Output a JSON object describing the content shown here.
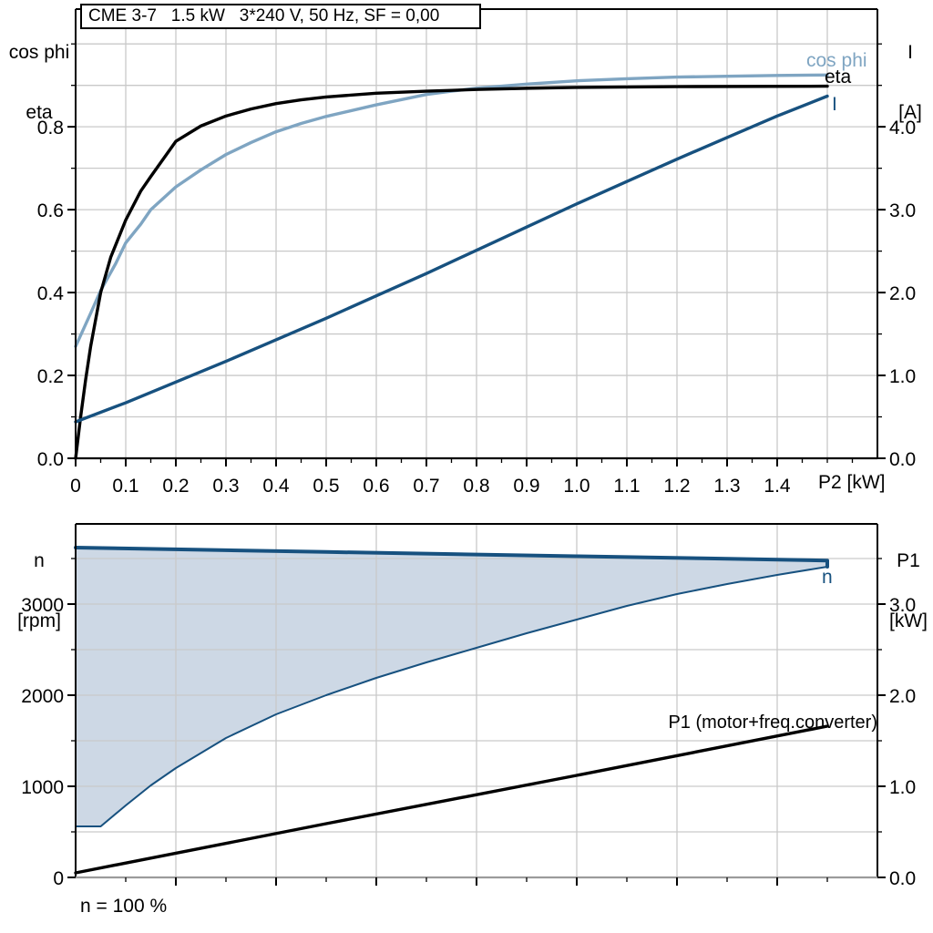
{
  "colors": {
    "cos_phi": "#7fa5c2",
    "eta": "#000000",
    "current": "#17517f",
    "speed_line": "#17517f",
    "band_fill": "#cdd8e5",
    "gridline": "#c9c9c9",
    "axis": "#000000",
    "bottom_axis_gray": "#9b9b9b"
  },
  "chart_data": [
    {
      "type": "line",
      "title": "CME 3-7   1.5 kW   3*240 V, 50 Hz, SF = 0,00",
      "x_axis": {
        "label": "P2 [kW]",
        "range": [
          0,
          1.6
        ],
        "major_ticks": [
          0,
          0.1,
          0.2,
          0.3,
          0.4,
          0.5,
          0.6,
          0.7,
          0.8,
          0.9,
          1.0,
          1.1,
          1.2,
          1.3,
          1.4
        ],
        "tick_labels": [
          "0",
          "0.1",
          "0.2",
          "0.3",
          "0.4",
          "0.5",
          "0.6",
          "0.7",
          "0.8",
          "0.9",
          "1.0",
          "1.1",
          "1.2",
          "1.3",
          "1.4"
        ],
        "minor_step": 0.05,
        "grid_step": 0.1
      },
      "y_left": {
        "title_lines": [
          "cos phi",
          "eta"
        ],
        "range": [
          0,
          1.084
        ],
        "major_ticks": [
          0,
          0.2,
          0.4,
          0.6,
          0.8
        ],
        "tick_labels": [
          "0.0",
          "0.2",
          "0.4",
          "0.6",
          "0.8"
        ],
        "minor_step": 0.1,
        "grid_step": 0.1
      },
      "y_right": {
        "title_lines": [
          "I",
          "[A]"
        ],
        "range": [
          0,
          5.42
        ],
        "major_ticks": [
          0,
          1,
          2,
          3,
          4
        ],
        "tick_labels": [
          "0.0",
          "1.0",
          "2.0",
          "3.0",
          "4.0"
        ],
        "minor_step": 0.5
      },
      "series": [
        {
          "name": "cos phi",
          "axis": "left",
          "color": "#7fa5c2",
          "width": 3.4,
          "points": [
            [
              0,
              0.27
            ],
            [
              0.03,
              0.35
            ],
            [
              0.05,
              0.405
            ],
            [
              0.08,
              0.47
            ],
            [
              0.1,
              0.52
            ],
            [
              0.13,
              0.565
            ],
            [
              0.15,
              0.6
            ],
            [
              0.2,
              0.655
            ],
            [
              0.25,
              0.696
            ],
            [
              0.3,
              0.733
            ],
            [
              0.35,
              0.762
            ],
            [
              0.4,
              0.788
            ],
            [
              0.45,
              0.808
            ],
            [
              0.5,
              0.825
            ],
            [
              0.6,
              0.853
            ],
            [
              0.7,
              0.878
            ],
            [
              0.75,
              0.886
            ],
            [
              0.8,
              0.893
            ],
            [
              0.9,
              0.903
            ],
            [
              1.0,
              0.911
            ],
            [
              1.1,
              0.916
            ],
            [
              1.2,
              0.92
            ],
            [
              1.3,
              0.922
            ],
            [
              1.4,
              0.924
            ],
            [
              1.5,
              0.925
            ]
          ]
        },
        {
          "name": "eta",
          "axis": "left",
          "color": "#000000",
          "width": 3.4,
          "points": [
            [
              0,
              0
            ],
            [
              0.01,
              0.1
            ],
            [
              0.02,
              0.19
            ],
            [
              0.03,
              0.27
            ],
            [
              0.05,
              0.4
            ],
            [
              0.07,
              0.485
            ],
            [
              0.1,
              0.575
            ],
            [
              0.13,
              0.645
            ],
            [
              0.15,
              0.68
            ],
            [
              0.2,
              0.765
            ],
            [
              0.25,
              0.802
            ],
            [
              0.3,
              0.826
            ],
            [
              0.35,
              0.843
            ],
            [
              0.4,
              0.856
            ],
            [
              0.45,
              0.865
            ],
            [
              0.5,
              0.872
            ],
            [
              0.6,
              0.881
            ],
            [
              0.7,
              0.886
            ],
            [
              0.75,
              0.888
            ],
            [
              0.8,
              0.89
            ],
            [
              0.9,
              0.893
            ],
            [
              1.0,
              0.895
            ],
            [
              1.2,
              0.897
            ],
            [
              1.5,
              0.898
            ]
          ]
        },
        {
          "name": "I",
          "axis": "right",
          "color": "#17517f",
          "width": 3.4,
          "points": [
            [
              0,
              0.44
            ],
            [
              0.1,
              0.67
            ],
            [
              0.2,
              0.92
            ],
            [
              0.3,
              1.17
            ],
            [
              0.4,
              1.43
            ],
            [
              0.5,
              1.69
            ],
            [
              0.6,
              1.96
            ],
            [
              0.7,
              2.23
            ],
            [
              0.8,
              2.51
            ],
            [
              0.9,
              2.79
            ],
            [
              1.0,
              3.07
            ],
            [
              1.1,
              3.34
            ],
            [
              1.2,
              3.61
            ],
            [
              1.3,
              3.87
            ],
            [
              1.4,
              4.13
            ],
            [
              1.5,
              4.37
            ]
          ]
        }
      ],
      "curve_labels": [
        {
          "text": "cos phi"
        },
        {
          "text": "eta"
        },
        {
          "text": "I"
        }
      ]
    },
    {
      "type": "area-line",
      "x_axis": {
        "label": "",
        "range": [
          0,
          1.6
        ],
        "major_ticks": [
          0.2,
          0.4,
          0.6,
          0.8,
          1.0,
          1.2,
          1.4
        ],
        "tick_labels": [],
        "minor_step": 0.1,
        "grid_step": 0.2
      },
      "y_left": {
        "title_lines": [
          "n",
          "[rpm]"
        ],
        "range": [
          0,
          3880
        ],
        "major_ticks": [
          0,
          1000,
          2000,
          3000
        ],
        "tick_labels": [
          "0",
          "1000",
          "2000",
          "3000"
        ],
        "minor_step": 500,
        "grid_step": 500
      },
      "y_right": {
        "title_lines": [
          "P1",
          "[kW]"
        ],
        "range": [
          0,
          3.88
        ],
        "major_ticks": [
          0,
          1,
          2,
          3
        ],
        "tick_labels": [
          "0.0",
          "1.0",
          "2.0",
          "3.0"
        ],
        "minor_step": 0.5
      },
      "series": [
        {
          "name": "n",
          "type": "band",
          "axis": "left",
          "line_color": "#17517f",
          "fill_color": "#cdd8e5",
          "upper_width": 4,
          "lower_width": 2,
          "upper": [
            [
              0,
              3620
            ],
            [
              0.25,
              3596
            ],
            [
              0.5,
              3572
            ],
            [
              0.75,
              3549
            ],
            [
              1.0,
              3525
            ],
            [
              1.25,
              3502
            ],
            [
              1.5,
              3478
            ]
          ],
          "lower": [
            [
              0,
              560
            ],
            [
              0.05,
              560
            ],
            [
              0.1,
              790
            ],
            [
              0.15,
              1010
            ],
            [
              0.2,
              1200
            ],
            [
              0.3,
              1530
            ],
            [
              0.4,
              1790
            ],
            [
              0.5,
              2000
            ],
            [
              0.6,
              2190
            ],
            [
              0.7,
              2360
            ],
            [
              0.8,
              2520
            ],
            [
              0.9,
              2680
            ],
            [
              1.0,
              2830
            ],
            [
              1.1,
              2980
            ],
            [
              1.2,
              3110
            ],
            [
              1.3,
              3220
            ],
            [
              1.4,
              3320
            ],
            [
              1.5,
              3410
            ]
          ]
        },
        {
          "name": "P1 (motor+freq.converter)",
          "type": "line",
          "axis": "right",
          "color": "#000000",
          "width": 3.4,
          "points": [
            [
              0,
              0.05
            ],
            [
              0.5,
              0.59
            ],
            [
              1.0,
              1.12
            ],
            [
              1.5,
              1.66
            ]
          ]
        }
      ],
      "curve_labels": [
        {
          "text": "n"
        },
        {
          "text": "P1 (motor+freq.converter)"
        }
      ],
      "footnote": "n = 100 %"
    }
  ]
}
